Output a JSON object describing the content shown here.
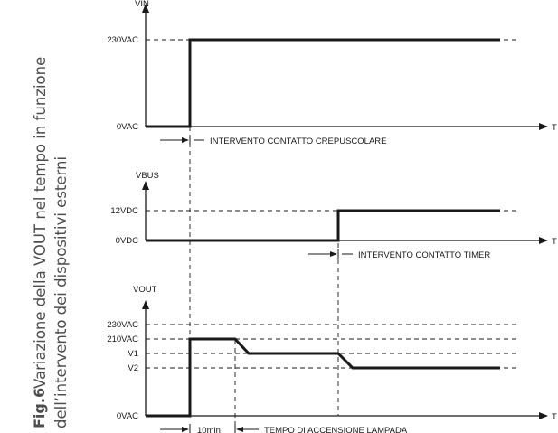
{
  "caption": {
    "fig_number": "Fig.6",
    "line1": "Variazione della VOUT nel tempo in funzione",
    "line2": "dell’intervento dei dispositivi esterni"
  },
  "time_axis_label": "T",
  "panels": {
    "vin": {
      "axis_label": "VIN",
      "levels": [
        "230VAC",
        "0VAC"
      ],
      "annotation": "INTERVENTO CONTATTO CREPUSCOLARE"
    },
    "vbus": {
      "axis_label": "VBUS",
      "levels": [
        "12VDC",
        "0VDC"
      ],
      "annotation": "INTERVENTO CONTATTO TIMER"
    },
    "vout": {
      "axis_label": "VOUT",
      "levels": [
        "230VAC",
        "210VAC",
        "V1",
        "V2",
        "0VAC"
      ],
      "duration_label": "10min",
      "annotation": "TEMPO DI ACCENSIONE LAMPADA"
    }
  }
}
